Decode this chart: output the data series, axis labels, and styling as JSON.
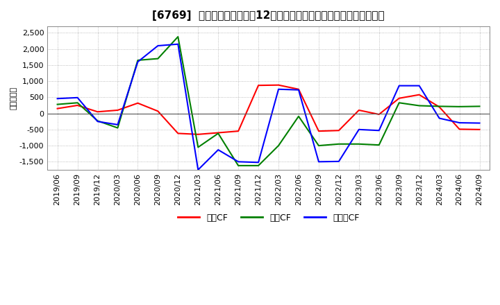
{
  "title": "[6769]  キャッシュフローの12か月移動合計の対前年同期増減額の推移",
  "ylabel": "（百万円）",
  "x_labels": [
    "2019/06",
    "2019/09",
    "2019/12",
    "2020/03",
    "2020/06",
    "2020/09",
    "2020/12",
    "2021/03",
    "2021/06",
    "2021/09",
    "2021/12",
    "2022/03",
    "2022/06",
    "2022/09",
    "2022/12",
    "2023/03",
    "2023/06",
    "2023/09",
    "2023/12",
    "2024/03",
    "2024/06",
    "2024/09"
  ],
  "series": {
    "営業CF": {
      "color": "#ff0000",
      "values": [
        150,
        250,
        50,
        100,
        320,
        70,
        -620,
        -650,
        -600,
        -550,
        870,
        880,
        750,
        -550,
        -530,
        100,
        -30,
        470,
        580,
        200,
        -490,
        -500
      ]
    },
    "投資CF": {
      "color": "#008000",
      "values": [
        280,
        330,
        -230,
        -450,
        1650,
        1700,
        2380,
        -1050,
        -620,
        -1620,
        -1620,
        -1000,
        -90,
        -1000,
        -950,
        -950,
        -980,
        330,
        240,
        220,
        210,
        220
      ]
    },
    "フリーCF": {
      "color": "#0000ff",
      "values": [
        460,
        490,
        -250,
        -350,
        1600,
        2100,
        2150,
        -1750,
        -1130,
        -1500,
        -1520,
        750,
        730,
        -1500,
        -1490,
        -500,
        -530,
        860,
        860,
        -150,
        -290,
        -300
      ]
    }
  },
  "ylim": [
    -1750,
    2700
  ],
  "yticks": [
    -1500,
    -1000,
    -500,
    0,
    500,
    1000,
    1500,
    2000,
    2500
  ],
  "legend_labels": [
    "営業CF",
    "投資CF",
    "フリーCF"
  ],
  "legend_colors": [
    "#ff0000",
    "#008000",
    "#0000ff"
  ],
  "background_color": "#ffffff",
  "grid_color": "#aaaaaa",
  "title_fontsize": 11,
  "axis_fontsize": 8,
  "legend_fontsize": 9
}
